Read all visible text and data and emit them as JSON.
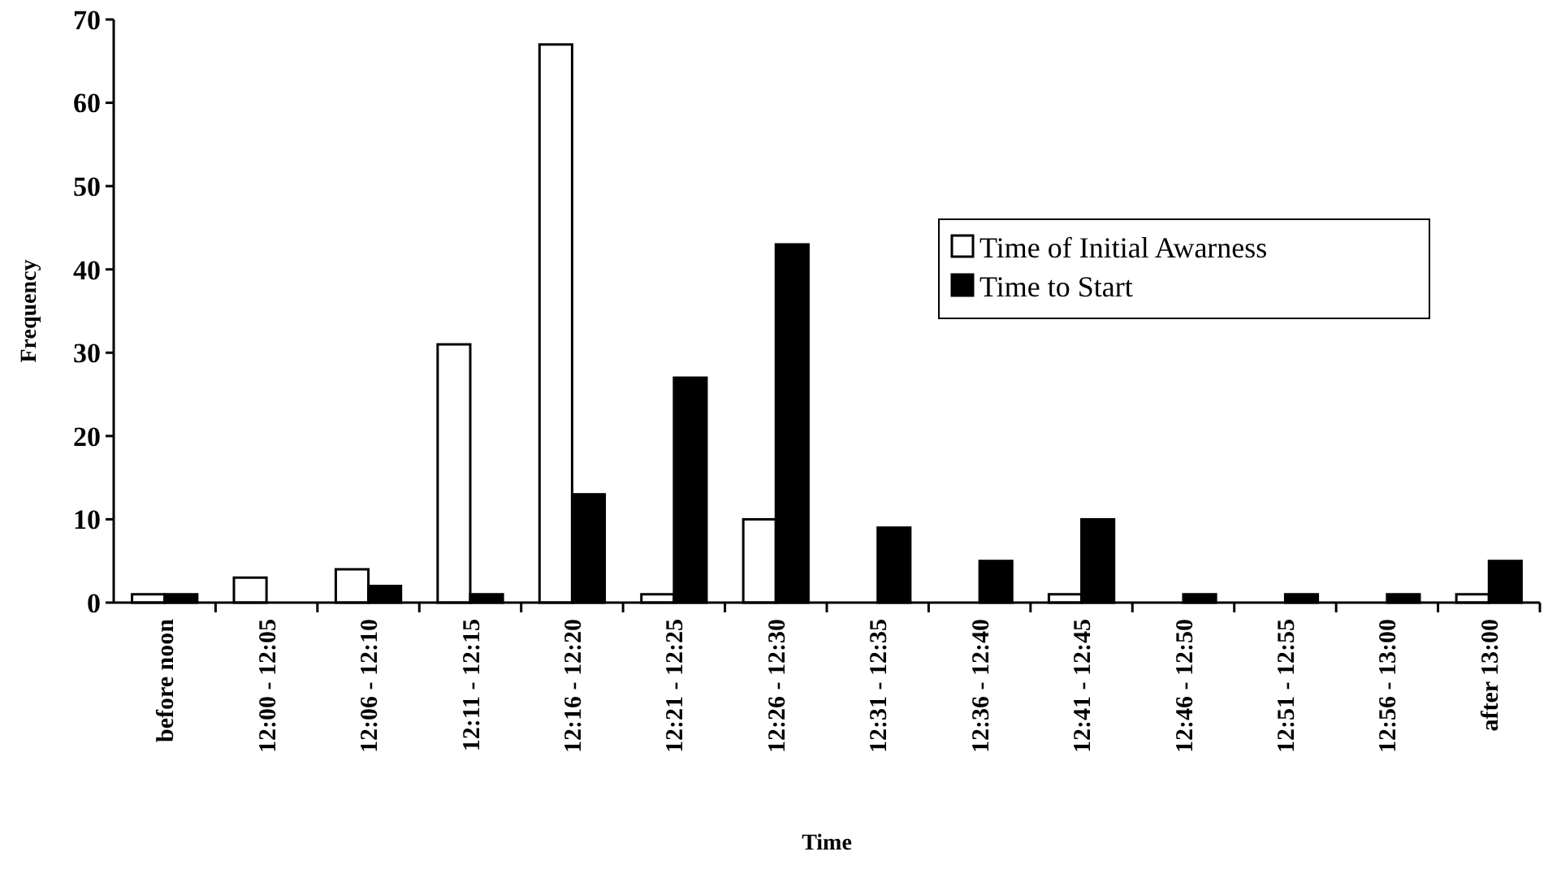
{
  "chart_data": {
    "type": "bar",
    "xlabel": "Time",
    "ylabel": "Frequency",
    "categories": [
      "before noon",
      "12:00 - 12:05",
      "12:06 - 12:10",
      "12:11 - 12:15",
      "12:16 - 12:20",
      "12:21 - 12:25",
      "12:26 - 12:30",
      "12:31 - 12:35",
      "12:36 - 12:40",
      "12:41 - 12:45",
      "12:46 - 12:50",
      "12:51 - 12:55",
      "12:56 - 13:00",
      "after 13:00"
    ],
    "series": [
      {
        "name": "Time of Initial Awarness",
        "color": "#ffffff",
        "values": [
          1,
          3,
          4,
          31,
          67,
          1,
          10,
          0,
          0,
          1,
          0,
          0,
          0,
          1
        ]
      },
      {
        "name": "Time to Start",
        "color": "#000000",
        "values": [
          1,
          0,
          2,
          1,
          13,
          27,
          43,
          9,
          5,
          10,
          1,
          1,
          1,
          5
        ]
      }
    ],
    "ylim": [
      0,
      70
    ],
    "yticks": [
      0,
      10,
      20,
      30,
      40,
      50,
      60,
      70
    ],
    "grid": false,
    "legend": "right"
  }
}
